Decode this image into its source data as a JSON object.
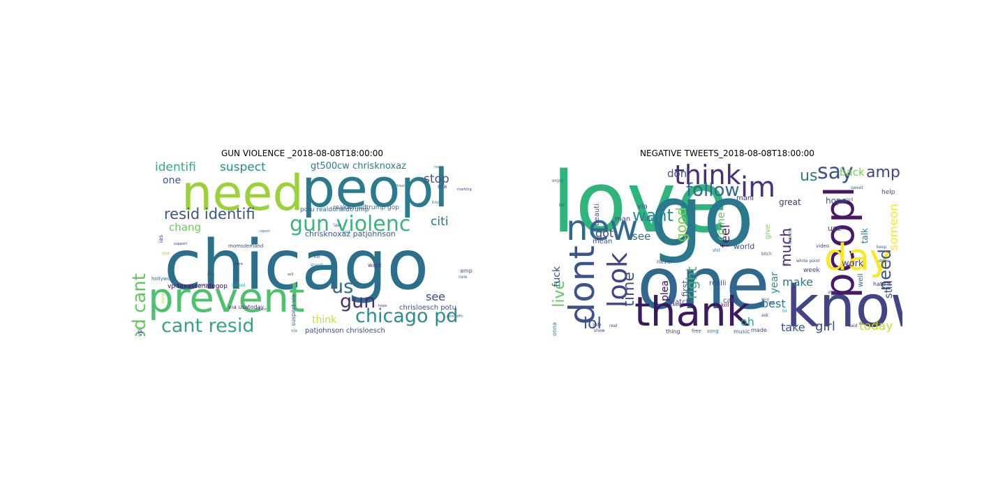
{
  "figure": {
    "panels": [
      {
        "title": "GUN VIOLENCE _2018-08-08T18:00:00",
        "words": [
          {
            "text": "chicago",
            "color": "#2c6f8c"
          },
          {
            "text": "need",
            "color": "#9bd23a"
          },
          {
            "text": "peopl",
            "color": "#2a7b8e"
          },
          {
            "text": "prevent",
            "color": "#4cc26c"
          },
          {
            "text": "gun violenc",
            "color": "#3bb47a"
          },
          {
            "text": "pd cant",
            "color": "#63c95d"
          },
          {
            "text": "cant resid",
            "color": "#34a482"
          },
          {
            "text": "chicago pd",
            "color": "#2c8c8c"
          },
          {
            "text": "resid identifi",
            "color": "#3a568a"
          },
          {
            "text": "gun",
            "color": "#472e7c"
          },
          {
            "text": "us",
            "color": "#31688e"
          },
          {
            "text": "identifi",
            "color": "#36a984"
          },
          {
            "text": "suspect",
            "color": "#2a8a8a"
          },
          {
            "text": "stop",
            "color": "#3b528b"
          },
          {
            "text": "citi",
            "color": "#2e6e8e"
          },
          {
            "text": "one",
            "color": "#38588c"
          },
          {
            "text": "chang",
            "color": "#6ccd5a"
          },
          {
            "text": "see",
            "color": "#414487"
          },
          {
            "text": "think",
            "color": "#c5df3a"
          },
          {
            "text": "gt500cw chrisknoxaz",
            "color": "#2a7b8e"
          },
          {
            "text": "chrisknoxaz patjohnson",
            "color": "#365c8d"
          },
          {
            "text": "patjohnson chrisloesch",
            "color": "#3e4a89"
          },
          {
            "text": "chrisloesch potu",
            "color": "#3b528b"
          },
          {
            "text": "potu realdonaldtrump",
            "color": "#31688e"
          },
          {
            "text": "realdonaldtrump gop",
            "color": "#2e6e8e"
          },
          {
            "text": "gop vp",
            "color": "#404387"
          },
          {
            "text": "vp texassenategop",
            "color": "#440154"
          },
          {
            "text": "suspect via",
            "color": "#3b528b"
          },
          {
            "text": "via usatoday",
            "color": "#46337e"
          },
          {
            "text": "momsdemand",
            "color": "#3e4a89"
          },
          {
            "text": "hollywood",
            "color": "#31688e"
          },
          {
            "text": "want",
            "color": "#46337e"
          },
          {
            "text": "amp",
            "color": "#3b528b"
          },
          {
            "text": "ias",
            "color": "#414487"
          },
          {
            "text": "school",
            "color": "#22a884"
          },
          {
            "text": "nra",
            "color": "#3e4a89"
          },
          {
            "text": "shot",
            "color": "#7ad151"
          },
          {
            "text": "kill",
            "color": "#46337e"
          },
          {
            "text": "stand",
            "color": "#2a788e"
          },
          {
            "text": "know",
            "color": "#2a788e"
          },
          {
            "text": "last",
            "color": "#3e4a89"
          },
          {
            "text": "i",
            "color": "#3b528b"
          },
          {
            "text": "end",
            "color": "#2a788e"
          },
          {
            "text": "more",
            "color": "#472d7b"
          },
          {
            "text": "look",
            "color": "#3b528b"
          },
          {
            "text": "support",
            "color": "#46337e"
          },
          {
            "text": "will",
            "color": "#404387"
          },
          {
            "text": "via",
            "color": "#2a788e"
          },
          {
            "text": "trump",
            "color": "#9fda3a"
          },
          {
            "text": "new",
            "color": "#2a788e"
          },
          {
            "text": "polic offic",
            "color": "#31688e"
          },
          {
            "text": "hope",
            "color": "#46337e"
          },
          {
            "text": "jack",
            "color": "#3e4a89"
          },
          {
            "text": "report",
            "color": "#2a788e"
          },
          {
            "text": "control",
            "color": "#3b528b"
          },
          {
            "text": "marking",
            "color": "#46337e"
          },
          {
            "text": "firearm",
            "color": "#2a788e"
          },
          {
            "text": "mass",
            "color": "#2a788e"
          }
        ]
      },
      {
        "title": "NEGATIVE TWEETS_2018-08-08T18:00:00",
        "words": [
          {
            "text": "love",
            "color": "#2fb47c"
          },
          {
            "text": "go",
            "color": "#2a788e"
          },
          {
            "text": "one",
            "color": "#31688e"
          },
          {
            "text": "know",
            "color": "#414487"
          },
          {
            "text": "thank",
            "color": "#3a1a5e"
          },
          {
            "text": "peopl",
            "color": "#481769"
          },
          {
            "text": "dont",
            "color": "#3b528b"
          },
          {
            "text": "new",
            "color": "#31688e"
          },
          {
            "text": "day",
            "color": "#fde725"
          },
          {
            "text": "think",
            "color": "#472d7b"
          },
          {
            "text": "im",
            "color": "#46327e"
          },
          {
            "text": "say",
            "color": "#3b528b"
          },
          {
            "text": "look",
            "color": "#404387"
          },
          {
            "text": "follow",
            "color": "#31688e"
          },
          {
            "text": "want",
            "color": "#21908c"
          },
          {
            "text": "lol",
            "color": "#3b528b"
          },
          {
            "text": "us",
            "color": "#2a788e"
          },
          {
            "text": "good",
            "color": "#7ad151"
          },
          {
            "text": "time",
            "color": "#3e4a89"
          },
          {
            "text": "live",
            "color": "#5ec962"
          },
          {
            "text": "need",
            "color": "#3b528b"
          },
          {
            "text": "amp",
            "color": "#414487"
          },
          {
            "text": "much",
            "color": "#482475"
          },
          {
            "text": "feel",
            "color": "#481f70"
          },
          {
            "text": "right",
            "color": "#35b779"
          },
          {
            "text": "someon",
            "color": "#fde725"
          },
          {
            "text": "today",
            "color": "#c2df23"
          },
          {
            "text": "girl",
            "color": "#3e4a89"
          },
          {
            "text": "take",
            "color": "#3b528b"
          },
          {
            "text": "make",
            "color": "#2a788e"
          },
          {
            "text": "best",
            "color": "#2a788e"
          },
          {
            "text": "oh",
            "color": "#22a884"
          },
          {
            "text": "back",
            "color": "#7ad151"
          },
          {
            "text": "don",
            "color": "#3b528b"
          },
          {
            "text": "see",
            "color": "#31688e"
          },
          {
            "text": "got",
            "color": "#414487"
          },
          {
            "text": "fuck",
            "color": "#3b528b"
          },
          {
            "text": "year",
            "color": "#21908c"
          },
          {
            "text": "come",
            "color": "#5ec962"
          },
          {
            "text": "still",
            "color": "#3b528b"
          },
          {
            "text": "work",
            "color": "#404387"
          },
          {
            "text": "plea",
            "color": "#440154"
          },
          {
            "text": "first",
            "color": "#31688e"
          },
          {
            "text": "hope",
            "color": "#3b528b"
          },
          {
            "text": "great",
            "color": "#46337e"
          },
          {
            "text": "talk",
            "color": "#2a788e"
          },
          {
            "text": "use",
            "color": "#3b528b"
          },
          {
            "text": "world",
            "color": "#3e4a89"
          },
          {
            "text": "watch",
            "color": "#414487"
          },
          {
            "text": "cant",
            "color": "#3b528b"
          },
          {
            "text": "give",
            "color": "#7ad151"
          },
          {
            "text": "well",
            "color": "#31688e"
          },
          {
            "text": "realli",
            "color": "#3e4a89"
          },
          {
            "text": "kill",
            "color": "#440154"
          },
          {
            "text": "mani",
            "color": "#46337e"
          },
          {
            "text": "life",
            "color": "#2a788e"
          },
          {
            "text": "via",
            "color": "#3b528b"
          },
          {
            "text": "man",
            "color": "#414487"
          },
          {
            "text": "beauti",
            "color": "#3b528b"
          },
          {
            "text": "mean",
            "color": "#3e4a89"
          },
          {
            "text": "never",
            "color": "#404387"
          },
          {
            "text": "job",
            "color": "#3b528b"
          },
          {
            "text": "gonna",
            "color": "#2a788e"
          },
          {
            "text": "made",
            "color": "#3e4a89"
          },
          {
            "text": "music",
            "color": "#31688e"
          },
          {
            "text": "thing",
            "color": "#46337e"
          },
          {
            "text": "free",
            "color": "#3b528b"
          },
          {
            "text": "week",
            "color": "#404387"
          },
          {
            "text": "help",
            "color": "#3b528b"
          },
          {
            "text": "video",
            "color": "#3e4a89"
          },
          {
            "text": "song",
            "color": "#2a788e"
          },
          {
            "text": "hate it",
            "color": "#46337e"
          },
          {
            "text": "wanna",
            "color": "#3b528b"
          },
          {
            "text": "keep",
            "color": "#31688e"
          },
          {
            "text": "noth",
            "color": "#404387"
          },
          {
            "text": "god",
            "color": "#2a788e"
          },
          {
            "text": "bitch",
            "color": "#3b528b"
          },
          {
            "text": "ask",
            "color": "#3e4a89"
          },
          {
            "text": "tri",
            "color": "#21908c"
          },
          {
            "text": "show",
            "color": "#46337e"
          },
          {
            "text": "white point",
            "color": "#3b528b"
          },
          {
            "text": "done",
            "color": "#404387"
          },
          {
            "text": "guy",
            "color": "#2a788e"
          },
          {
            "text": "sweet",
            "color": "#31688e"
          },
          {
            "text": "stay",
            "color": "#3e4a89"
          },
          {
            "text": "said",
            "color": "#46337e"
          },
          {
            "text": "top",
            "color": "#3b528b"
          },
          {
            "text": "tweet",
            "color": "#404387"
          },
          {
            "text": "shit",
            "color": "#2a788e"
          },
          {
            "text": "car",
            "color": "#3b528b"
          },
          {
            "text": "enjoy",
            "color": "#31688e"
          },
          {
            "text": "set",
            "color": "#3e4a89"
          },
          {
            "text": "real",
            "color": "#46337e"
          },
          {
            "text": "lot",
            "color": "#3b528b"
          }
        ]
      }
    ]
  }
}
